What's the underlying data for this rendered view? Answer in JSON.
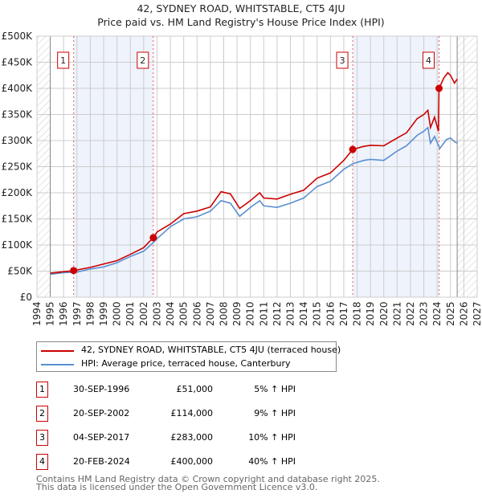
{
  "title": "42, SYDNEY ROAD, WHITSTABLE, CT5 4JU",
  "subtitle": "Price paid vs. HM Land Registry's House Price Index (HPI)",
  "chart_data": {
    "type": "line",
    "title": "42, SYDNEY ROAD, WHITSTABLE, CT5 4JU",
    "subtitle": "Price paid vs. HM Land Registry's House Price Index (HPI)",
    "xlim": [
      1994,
      2027
    ],
    "ylim": [
      0,
      500000
    ],
    "yticks": [
      {
        "v": 0,
        "label": "£0"
      },
      {
        "v": 50000,
        "label": "£50K"
      },
      {
        "v": 100000,
        "label": "£100K"
      },
      {
        "v": 150000,
        "label": "£150K"
      },
      {
        "v": 200000,
        "label": "£200K"
      },
      {
        "v": 250000,
        "label": "£250K"
      },
      {
        "v": 300000,
        "label": "£300K"
      },
      {
        "v": 350000,
        "label": "£350K"
      },
      {
        "v": 400000,
        "label": "£400K"
      },
      {
        "v": 450000,
        "label": "£450K"
      },
      {
        "v": 500000,
        "label": "£500K"
      }
    ],
    "xticks": [
      "1994",
      "1995",
      "1996",
      "1997",
      "1998",
      "1999",
      "2000",
      "2001",
      "2002",
      "2003",
      "2004",
      "2005",
      "2006",
      "2007",
      "2008",
      "2009",
      "2010",
      "2011",
      "2012",
      "2013",
      "2014",
      "2015",
      "2016",
      "2017",
      "2018",
      "2019",
      "2020",
      "2021",
      "2022",
      "2023",
      "2024",
      "2025",
      "2026",
      "2027"
    ],
    "data_range": [
      1995,
      2025.5
    ],
    "grid": true,
    "series": [
      {
        "name": "42, SYDNEY ROAD, WHITSTABLE, CT5 4JU (terraced house)",
        "color": "#cc0000",
        "points": [
          [
            1995,
            46000
          ],
          [
            1996.75,
            51000
          ],
          [
            1998,
            57000
          ],
          [
            2000,
            70000
          ],
          [
            2001,
            82000
          ],
          [
            2002,
            95000
          ],
          [
            2002.72,
            114000
          ],
          [
            2003,
            125000
          ],
          [
            2004,
            140000
          ],
          [
            2005,
            160000
          ],
          [
            2006,
            165000
          ],
          [
            2007,
            173000
          ],
          [
            2007.8,
            202000
          ],
          [
            2008.5,
            198000
          ],
          [
            2009.2,
            170000
          ],
          [
            2010,
            185000
          ],
          [
            2010.7,
            200000
          ],
          [
            2011,
            190000
          ],
          [
            2012,
            188000
          ],
          [
            2013,
            197000
          ],
          [
            2014,
            205000
          ],
          [
            2015,
            228000
          ],
          [
            2016,
            238000
          ],
          [
            2017,
            262000
          ],
          [
            2017.67,
            283000
          ],
          [
            2018.5,
            289000
          ],
          [
            2019,
            291000
          ],
          [
            2020,
            290000
          ],
          [
            2021,
            305000
          ],
          [
            2021.7,
            315000
          ],
          [
            2022.5,
            342000
          ],
          [
            2023,
            350000
          ],
          [
            2023.3,
            358000
          ],
          [
            2023.5,
            325000
          ],
          [
            2023.8,
            345000
          ],
          [
            2024.1,
            318000
          ],
          [
            2024.14,
            400000
          ],
          [
            2024.5,
            420000
          ],
          [
            2024.8,
            430000
          ],
          [
            2025,
            425000
          ],
          [
            2025.3,
            410000
          ],
          [
            2025.5,
            418000
          ]
        ]
      },
      {
        "name": "HPI: Average price, terraced house, Canterbury",
        "color": "#5b8fd0",
        "points": [
          [
            1995,
            44000
          ],
          [
            1996,
            47000
          ],
          [
            1997,
            48000
          ],
          [
            1998,
            54000
          ],
          [
            1999,
            58000
          ],
          [
            2000,
            66000
          ],
          [
            2001,
            78000
          ],
          [
            2002,
            88000
          ],
          [
            2002.7,
            104000
          ],
          [
            2003,
            112000
          ],
          [
            2004,
            135000
          ],
          [
            2005,
            150000
          ],
          [
            2006,
            154000
          ],
          [
            2007,
            165000
          ],
          [
            2007.8,
            185000
          ],
          [
            2008.5,
            180000
          ],
          [
            2009.2,
            155000
          ],
          [
            2010,
            172000
          ],
          [
            2010.7,
            185000
          ],
          [
            2011,
            175000
          ],
          [
            2012,
            172000
          ],
          [
            2013,
            180000
          ],
          [
            2014,
            190000
          ],
          [
            2015,
            212000
          ],
          [
            2016,
            222000
          ],
          [
            2017,
            245000
          ],
          [
            2017.7,
            256000
          ],
          [
            2018.5,
            262000
          ],
          [
            2019,
            264000
          ],
          [
            2020,
            262000
          ],
          [
            2021,
            280000
          ],
          [
            2021.7,
            290000
          ],
          [
            2022.5,
            310000
          ],
          [
            2023,
            318000
          ],
          [
            2023.3,
            325000
          ],
          [
            2023.5,
            295000
          ],
          [
            2023.8,
            308000
          ],
          [
            2024.2,
            285000
          ],
          [
            2024.7,
            302000
          ],
          [
            2025,
            305000
          ],
          [
            2025.3,
            298000
          ],
          [
            2025.5,
            295000
          ]
        ]
      }
    ],
    "sales": [
      {
        "n": "1",
        "x": 1996.75,
        "y": 51000
      },
      {
        "n": "2",
        "x": 2002.72,
        "y": 114000
      },
      {
        "n": "3",
        "x": 2017.67,
        "y": 283000
      },
      {
        "n": "4",
        "x": 2024.14,
        "y": 400000
      }
    ]
  },
  "legend": {
    "property": "42, SYDNEY ROAD, WHITSTABLE, CT5 4JU (terraced house)",
    "hpi": "HPI: Average price, terraced house, Canterbury"
  },
  "transactions": [
    {
      "n": "1",
      "date": "30-SEP-1996",
      "price": "£51,000",
      "hpi": "5% ↑ HPI"
    },
    {
      "n": "2",
      "date": "20-SEP-2002",
      "price": "£114,000",
      "hpi": "9% ↑ HPI"
    },
    {
      "n": "3",
      "date": "04-SEP-2017",
      "price": "£283,000",
      "hpi": "10% ↑ HPI"
    },
    {
      "n": "4",
      "date": "20-FEB-2024",
      "price": "£400,000",
      "hpi": "40% ↑ HPI"
    }
  ],
  "footer": {
    "line1": "Contains HM Land Registry data © Crown copyright and database right 2025.",
    "line2": "This data is licensed under the Open Government Licence v3.0."
  }
}
